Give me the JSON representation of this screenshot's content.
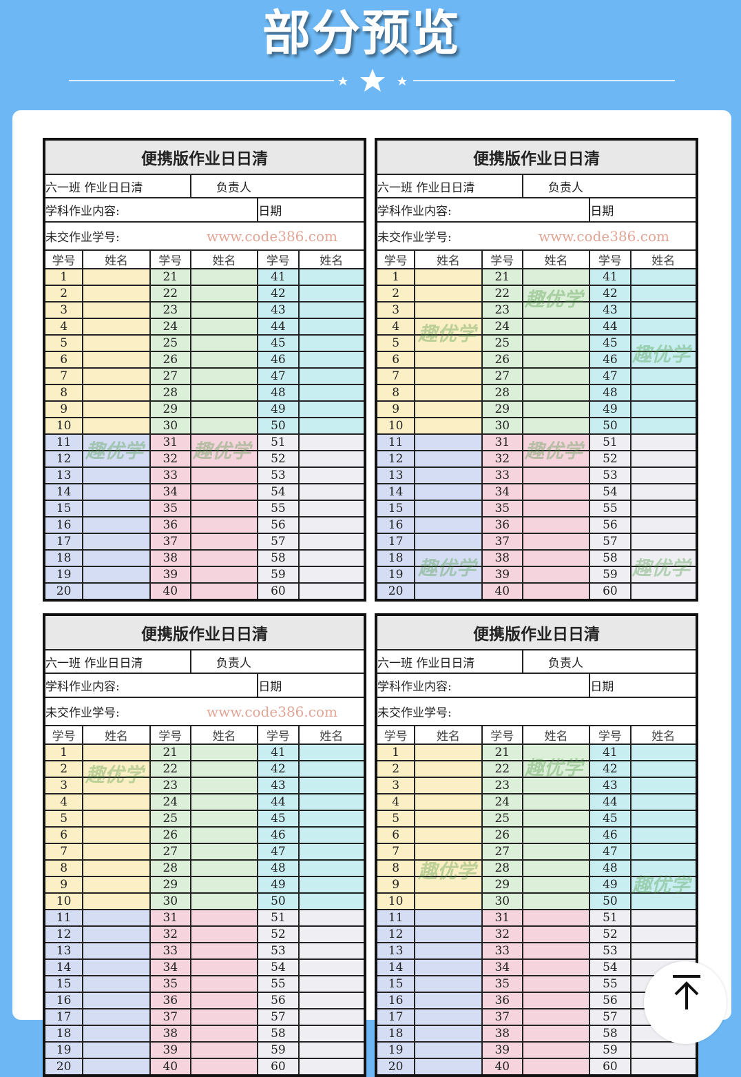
{
  "page": {
    "heading": "部分预览",
    "colors": {
      "background": "#6db8f4",
      "yellow": "#fbefc6",
      "green": "#dcefd8",
      "cyan": "#c8eef1",
      "blue": "#d4ddf3",
      "pink": "#f6d4de",
      "gray": "#efeff3"
    }
  },
  "sheet": {
    "title": "便携版作业日日清",
    "class_label": "六一班 作业日日清",
    "responsible_label": "负责人",
    "subject_label": "学科作业内容:",
    "date_label": "日期",
    "missing_label": "未交作业学号:",
    "column_headers": [
      "学号",
      "姓名",
      "学号",
      "姓名",
      "学号",
      "姓名"
    ],
    "numbers_col1": [
      1,
      2,
      3,
      4,
      5,
      6,
      7,
      8,
      9,
      10,
      11,
      12,
      13,
      14,
      15,
      16,
      17,
      18,
      19,
      20
    ],
    "numbers_col2": [
      21,
      22,
      23,
      24,
      25,
      26,
      27,
      28,
      29,
      30,
      31,
      32,
      33,
      34,
      35,
      36,
      37,
      38,
      39,
      40
    ],
    "numbers_col3": [
      41,
      42,
      43,
      44,
      45,
      46,
      47,
      48,
      49,
      50,
      51,
      52,
      53,
      54,
      55,
      56,
      57,
      58,
      59,
      60
    ]
  },
  "watermarks": {
    "logo_text": "趣优学",
    "url_text": "www.code386.com"
  },
  "scroll_top_icon": "arrow-up-to-top-icon"
}
